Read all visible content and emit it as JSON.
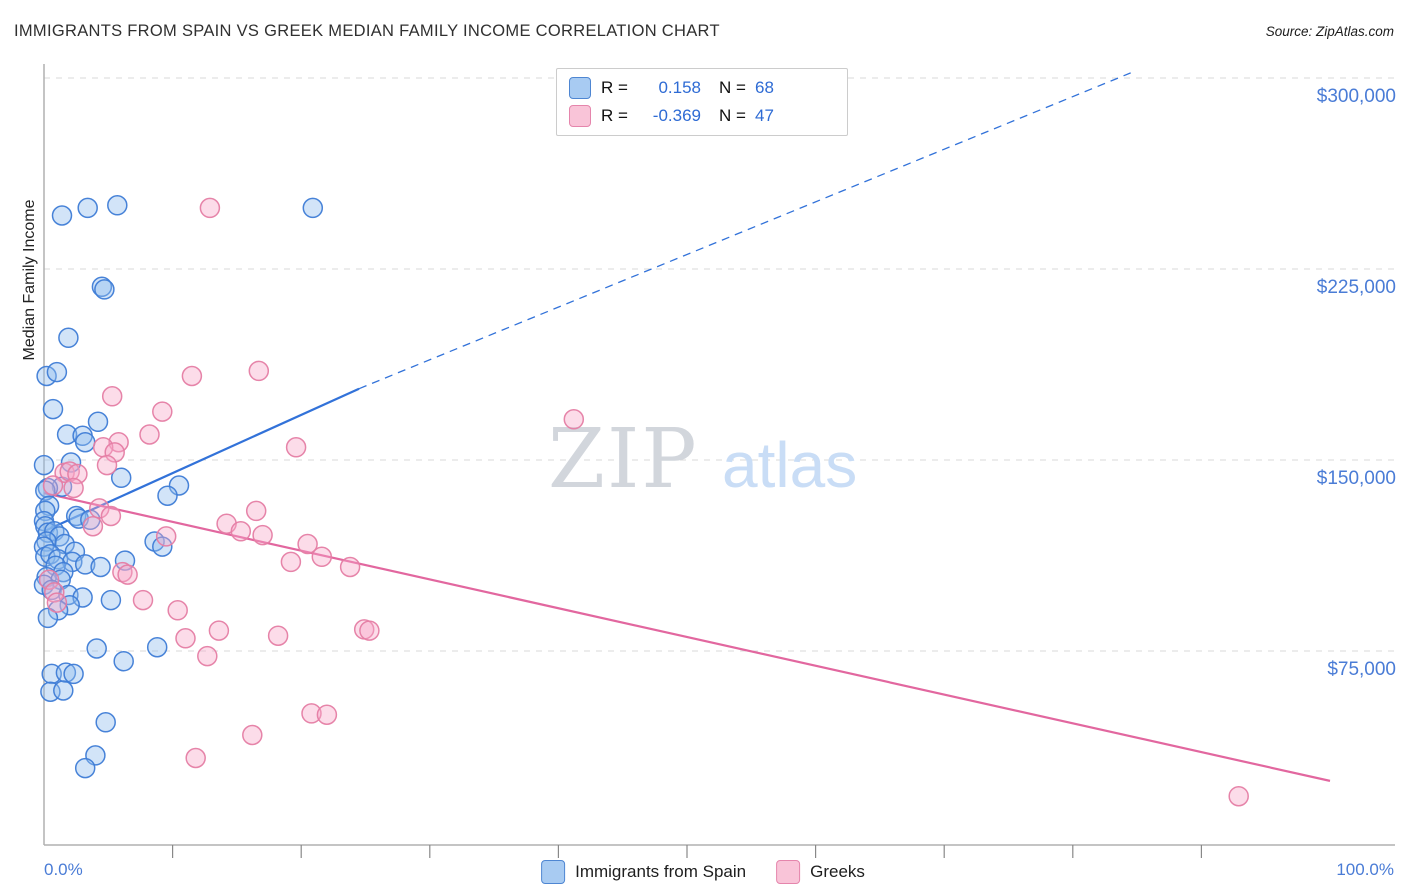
{
  "header": {
    "title": "IMMIGRANTS FROM SPAIN VS GREEK MEDIAN FAMILY INCOME CORRELATION CHART",
    "source": "Source: ZipAtlas.com"
  },
  "legend_box": {
    "rows": [
      {
        "series": "spain",
        "r_label": "R =",
        "r_value": "0.158",
        "n_label": "N =",
        "n_value": "68"
      },
      {
        "series": "greeks",
        "r_label": "R =",
        "r_value": "-0.369",
        "n_label": "N =",
        "n_value": "47"
      }
    ]
  },
  "watermark": {
    "zip": "ZIP",
    "atlas": "atlas"
  },
  "axes": {
    "y_label": "Median Family Income",
    "y_ticks": [
      "$300,000",
      "$225,000",
      "$150,000",
      "$75,000"
    ],
    "y_tick_values": [
      300000,
      225000,
      150000,
      75000
    ],
    "x_min_label": "0.0%",
    "x_max_label": "100.0%"
  },
  "bottom_legend": {
    "items": [
      {
        "label": "Immigrants from Spain",
        "color": "#a8cbf2"
      },
      {
        "label": "Greeks",
        "color": "#f9c4d8"
      }
    ]
  },
  "colors": {
    "blue_fill": "#8fbcee",
    "blue_stroke": "#3e7cd6",
    "blue_line": "#3272d9",
    "pink_fill": "#f7a8c8",
    "pink_stroke": "#e57da4",
    "pink_line": "#e2679f",
    "gridline": "#d9d9d9",
    "axis": "#b0b0b0",
    "tick_label": "#4a7cd6"
  },
  "chart_data": {
    "type": "scatter",
    "title": "Immigrants from Spain vs Greek Median Family Income",
    "x_axis": {
      "min": 0,
      "max": 100,
      "unit": "%",
      "labels": [
        "0.0%",
        "100.0%"
      ]
    },
    "y_axis": {
      "min": 0,
      "max": 305000,
      "unit": "USD",
      "gridlines": [
        300000,
        225000,
        150000,
        75000
      ],
      "grid": "dashed",
      "tick_side": "right"
    },
    "legend_position": "bottom-center",
    "series": [
      {
        "name": "Immigrants from Spain",
        "r": 0.158,
        "n": 68,
        "points": [
          [
            1.4,
            246000
          ],
          [
            3.4,
            249000
          ],
          [
            5.7,
            250000
          ],
          [
            20.9,
            249000
          ],
          [
            4.5,
            218000
          ],
          [
            4.7,
            217000
          ],
          [
            1.9,
            198000
          ],
          [
            0.2,
            183000
          ],
          [
            1.0,
            184500
          ],
          [
            0.7,
            170000
          ],
          [
            1.8,
            160000
          ],
          [
            3.0,
            159500
          ],
          [
            3.2,
            157000
          ],
          [
            4.2,
            165000
          ],
          [
            0.0,
            148000
          ],
          [
            2.1,
            149000
          ],
          [
            6.0,
            143000
          ],
          [
            10.5,
            140000
          ],
          [
            9.6,
            136000
          ],
          [
            1.4,
            139500
          ],
          [
            0.3,
            139000
          ],
          [
            0.1,
            138000
          ],
          [
            0.4,
            132000
          ],
          [
            0.1,
            130000
          ],
          [
            2.5,
            128000
          ],
          [
            2.7,
            127000
          ],
          [
            3.6,
            126500
          ],
          [
            0.0,
            126000
          ],
          [
            0.1,
            124000
          ],
          [
            0.3,
            121500
          ],
          [
            0.8,
            122000
          ],
          [
            1.2,
            120000
          ],
          [
            0.2,
            118000
          ],
          [
            1.6,
            117000
          ],
          [
            8.6,
            118000
          ],
          [
            9.2,
            116000
          ],
          [
            0.0,
            116000
          ],
          [
            2.4,
            114000
          ],
          [
            0.1,
            112000
          ],
          [
            0.5,
            113000
          ],
          [
            1.1,
            111000
          ],
          [
            6.3,
            110500
          ],
          [
            2.2,
            110000
          ],
          [
            3.2,
            109000
          ],
          [
            4.4,
            108000
          ],
          [
            0.9,
            108500
          ],
          [
            1.5,
            106000
          ],
          [
            0.2,
            104000
          ],
          [
            1.3,
            103000
          ],
          [
            0.0,
            101000
          ],
          [
            0.6,
            99000
          ],
          [
            1.9,
            97000
          ],
          [
            3.0,
            96000
          ],
          [
            5.2,
            95000
          ],
          [
            2.0,
            93000
          ],
          [
            1.1,
            91000
          ],
          [
            0.3,
            88000
          ],
          [
            4.1,
            76000
          ],
          [
            8.8,
            76500
          ],
          [
            6.2,
            71000
          ],
          [
            0.6,
            66000
          ],
          [
            1.7,
            66500
          ],
          [
            2.3,
            66000
          ],
          [
            0.5,
            59000
          ],
          [
            1.5,
            59500
          ],
          [
            4.8,
            47000
          ],
          [
            4.0,
            34000
          ],
          [
            3.2,
            29000
          ]
        ]
      },
      {
        "name": "Greeks",
        "r": -0.369,
        "n": 47,
        "points": [
          [
            12.9,
            249000
          ],
          [
            16.7,
            185000
          ],
          [
            11.5,
            183000
          ],
          [
            5.3,
            175000
          ],
          [
            9.2,
            169000
          ],
          [
            41.2,
            166000
          ],
          [
            8.2,
            160000
          ],
          [
            5.8,
            157000
          ],
          [
            4.6,
            155000
          ],
          [
            19.6,
            155000
          ],
          [
            5.5,
            153000
          ],
          [
            4.9,
            148000
          ],
          [
            1.6,
            145000
          ],
          [
            2.0,
            145500
          ],
          [
            2.6,
            144500
          ],
          [
            0.7,
            140000
          ],
          [
            2.3,
            139000
          ],
          [
            4.3,
            131000
          ],
          [
            16.5,
            130000
          ],
          [
            5.2,
            128000
          ],
          [
            3.8,
            124000
          ],
          [
            14.2,
            125000
          ],
          [
            15.3,
            122000
          ],
          [
            9.5,
            120000
          ],
          [
            17.0,
            120500
          ],
          [
            20.5,
            117000
          ],
          [
            21.6,
            112000
          ],
          [
            19.2,
            110000
          ],
          [
            23.8,
            108000
          ],
          [
            6.1,
            106000
          ],
          [
            6.5,
            105000
          ],
          [
            0.4,
            103000
          ],
          [
            0.8,
            98000
          ],
          [
            1.0,
            94000
          ],
          [
            7.7,
            95000
          ],
          [
            10.4,
            91000
          ],
          [
            13.6,
            83000
          ],
          [
            24.9,
            83500
          ],
          [
            25.3,
            83000
          ],
          [
            18.2,
            81000
          ],
          [
            11.0,
            80000
          ],
          [
            12.7,
            73000
          ],
          [
            20.8,
            50500
          ],
          [
            22.0,
            50000
          ],
          [
            16.2,
            42000
          ],
          [
            11.8,
            33000
          ],
          [
            92.9,
            18000
          ]
        ]
      }
    ],
    "trend_lines": [
      {
        "series": "Immigrants from Spain",
        "style": "solid",
        "from": [
          0,
          122000
        ],
        "to": [
          24.5,
          178000
        ]
      },
      {
        "series": "Immigrants from Spain",
        "style": "dashed",
        "from": [
          24.5,
          178000
        ],
        "to": [
          84.5,
          302000
        ]
      },
      {
        "series": "Greeks",
        "style": "solid",
        "from": [
          0,
          137000
        ],
        "to": [
          100,
          24000
        ]
      }
    ]
  }
}
